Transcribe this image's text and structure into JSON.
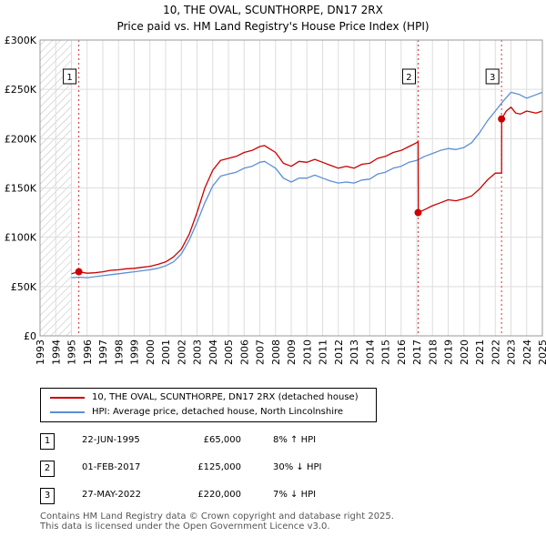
{
  "title": "10, THE OVAL, SCUNTHORPE, DN17 2RX",
  "subtitle": "Price paid vs. HM Land Registry's House Price Index (HPI)",
  "colors": {
    "price_line": "#cc0000",
    "hpi_line": "#5b8fd4",
    "grid": "#dddddd",
    "hatch": "#bbbbbb"
  },
  "chart_data": {
    "type": "line",
    "xlim": [
      1993,
      2025
    ],
    "ylim": [
      0,
      300000
    ],
    "x_ticks": [
      "1993",
      "1994",
      "1995",
      "1996",
      "1997",
      "1998",
      "1999",
      "2000",
      "2001",
      "2002",
      "2003",
      "2004",
      "2005",
      "2006",
      "2007",
      "2008",
      "2009",
      "2010",
      "2011",
      "2012",
      "2013",
      "2014",
      "2015",
      "2016",
      "2017",
      "2018",
      "2019",
      "2020",
      "2021",
      "2022",
      "2023",
      "2024",
      "2025"
    ],
    "y_ticks": [
      {
        "value": 0,
        "label": "£0"
      },
      {
        "value": 50000,
        "label": "£50K"
      },
      {
        "value": 100000,
        "label": "£100K"
      },
      {
        "value": 150000,
        "label": "£150K"
      },
      {
        "value": 200000,
        "label": "£200K"
      },
      {
        "value": 250000,
        "label": "£250K"
      },
      {
        "value": 300000,
        "label": "£300K"
      }
    ],
    "hatched_region": {
      "from": 1993,
      "to": 1995.0
    },
    "series": [
      {
        "name": "10, THE OVAL, SCUNTHORPE, DN17 2RX (detached house)",
        "x": [
          1995.0,
          1995.47,
          1996.0,
          1996.5,
          1997.0,
          1997.5,
          1998.0,
          1998.5,
          1999.0,
          1999.5,
          2000.0,
          2000.5,
          2001.0,
          2001.5,
          2002.0,
          2002.5,
          2003.0,
          2003.5,
          2004.0,
          2004.5,
          2005.0,
          2005.5,
          2006.0,
          2006.5,
          2007.0,
          2007.3,
          2007.6,
          2008.0,
          2008.5,
          2009.0,
          2009.5,
          2010.0,
          2010.5,
          2011.0,
          2011.5,
          2012.0,
          2012.5,
          2013.0,
          2013.5,
          2014.0,
          2014.5,
          2015.0,
          2015.5,
          2016.0,
          2016.5,
          2017.0,
          2017.085,
          2017.1,
          2017.5,
          2018.0,
          2018.5,
          2019.0,
          2019.5,
          2020.0,
          2020.5,
          2021.0,
          2021.5,
          2022.0,
          2022.4,
          2022.41,
          2022.7,
          2023.0,
          2023.3,
          2023.6,
          2024.0,
          2024.3,
          2024.6,
          2025.0
        ],
        "y": [
          63000,
          65000,
          63500,
          64000,
          65000,
          66500,
          67000,
          68000,
          68500,
          69500,
          70500,
          72500,
          75000,
          80000,
          88000,
          103000,
          125000,
          150000,
          168000,
          178000,
          180000,
          182000,
          186000,
          188000,
          192000,
          193000,
          190000,
          186000,
          175000,
          172000,
          177000,
          176000,
          179000,
          176000,
          173000,
          170000,
          172000,
          170000,
          174000,
          175000,
          180000,
          182000,
          186000,
          188000,
          192000,
          196000,
          197000,
          125000,
          128000,
          132000,
          135000,
          138000,
          137000,
          139000,
          142000,
          149000,
          158000,
          165000,
          165000,
          220000,
          228000,
          232000,
          226000,
          225000,
          228000,
          227000,
          226000,
          228000
        ]
      },
      {
        "name": "HPI: Average price, detached house, North Lincolnshire",
        "x": [
          1995.0,
          1995.5,
          1996.0,
          1996.5,
          1997.0,
          1997.5,
          1998.0,
          1998.5,
          1999.0,
          1999.5,
          2000.0,
          2000.5,
          2001.0,
          2001.5,
          2002.0,
          2002.5,
          2003.0,
          2003.5,
          2004.0,
          2004.5,
          2005.0,
          2005.5,
          2006.0,
          2006.5,
          2007.0,
          2007.3,
          2007.6,
          2008.0,
          2008.5,
          2009.0,
          2009.5,
          2010.0,
          2010.5,
          2011.0,
          2011.5,
          2012.0,
          2012.5,
          2013.0,
          2013.5,
          2014.0,
          2014.5,
          2015.0,
          2015.5,
          2016.0,
          2016.5,
          2017.0,
          2017.5,
          2018.0,
          2018.5,
          2019.0,
          2019.5,
          2020.0,
          2020.5,
          2021.0,
          2021.5,
          2022.0,
          2022.5,
          2023.0,
          2023.5,
          2024.0,
          2024.5,
          2025.0
        ],
        "y": [
          59000,
          59500,
          59000,
          60000,
          61000,
          62000,
          63000,
          64000,
          65000,
          66000,
          67000,
          68500,
          71000,
          75000,
          83000,
          97000,
          115000,
          135000,
          152000,
          162000,
          164000,
          166000,
          170000,
          172000,
          176000,
          177000,
          174000,
          170000,
          160000,
          156000,
          160000,
          160000,
          163000,
          160000,
          157000,
          155000,
          156000,
          155000,
          158000,
          159000,
          164000,
          166000,
          170000,
          172000,
          176000,
          178000,
          182000,
          185000,
          188000,
          190000,
          189000,
          191000,
          196000,
          206000,
          218000,
          228000,
          238000,
          247000,
          245000,
          241000,
          244000,
          247000
        ]
      }
    ],
    "transactions": [
      {
        "marker": "1",
        "x": 1995.47,
        "date": "22-JUN-1995",
        "price": 65000,
        "price_label": "£65,000",
        "hpi": "8% ↑ HPI"
      },
      {
        "marker": "2",
        "x": 2017.085,
        "date": "01-FEB-2017",
        "price": 125000,
        "price_label": "£125,000",
        "hpi": "30% ↓ HPI"
      },
      {
        "marker": "3",
        "x": 2022.4,
        "date": "27-MAY-2022",
        "price": 220000,
        "price_label": "£220,000",
        "hpi": "7% ↓ HPI"
      }
    ]
  },
  "legend": {
    "price": "10, THE OVAL, SCUNTHORPE, DN17 2RX (detached house)",
    "hpi": "HPI: Average price, detached house, North Lincolnshire"
  },
  "footer": {
    "line1": "Contains HM Land Registry data © Crown copyright and database right 2025.",
    "line2": "This data is licensed under the Open Government Licence v3.0."
  }
}
